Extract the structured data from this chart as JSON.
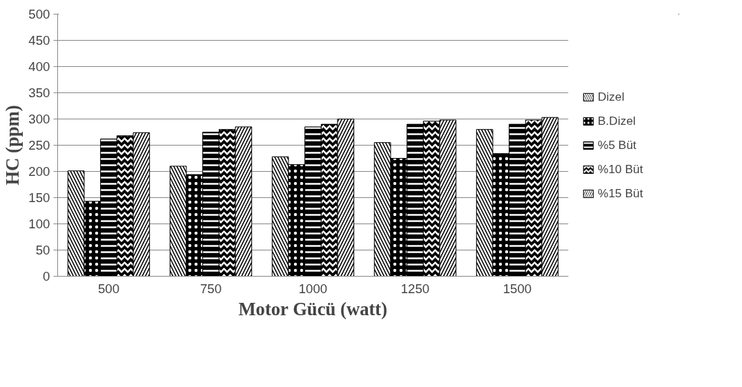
{
  "chart_data": {
    "type": "bar",
    "xlabel": "Motor Gücü (watt)",
    "ylabel": "HC (ppm)",
    "categories": [
      "500",
      "750",
      "1000",
      "1250",
      "1500"
    ],
    "series": [
      {
        "name": "Dizel",
        "color": "#000000",
        "values": [
          201,
          210,
          228,
          255,
          280
        ]
      },
      {
        "name": "B.Dizel",
        "color": "#000000",
        "values": [
          143,
          194,
          213,
          225,
          234
        ]
      },
      {
        "name": "%5 Büt",
        "color": "#000000",
        "values": [
          262,
          275,
          285,
          290,
          290
        ]
      },
      {
        "name": "%10 Büt",
        "color": "#000000",
        "values": [
          268,
          280,
          290,
          296,
          298
        ]
      },
      {
        "name": "%15 Büt",
        "color": "#000000",
        "values": [
          274,
          285,
          300,
          298,
          303
        ]
      }
    ],
    "ylim": [
      0,
      500
    ],
    "yticks": [
      0,
      50,
      100,
      150,
      200,
      250,
      300,
      350,
      400,
      450,
      500
    ],
    "grid": "y",
    "legend": "right"
  }
}
